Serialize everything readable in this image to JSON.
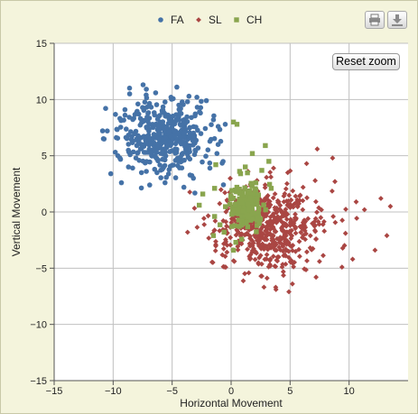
{
  "toolbar": {
    "reset_zoom_label": "Reset zoom",
    "print_icon": "printer-icon",
    "export_icon": "download-icon"
  },
  "chart_data": {
    "type": "scatter",
    "title": "",
    "xlabel": "Horizontal Movement",
    "ylabel": "Vertical Movement",
    "xlim": [
      -15,
      15
    ],
    "ylim": [
      -15,
      15
    ],
    "xticks": [
      -15,
      -10,
      -5,
      0,
      5,
      10
    ],
    "yticks": [
      -15,
      -10,
      -5,
      0,
      5,
      10,
      15
    ],
    "grid": true,
    "legend_position": "top-center",
    "series": [
      {
        "name": "FA",
        "marker": "circle",
        "color": "#4572a7",
        "center": [
          -5.6,
          6.6
        ],
        "spread": [
          1.85,
          1.55
        ],
        "count": 420,
        "points": [
          [
            -10.2,
            3.4
          ],
          [
            -10.5,
            7.2
          ],
          [
            -9.3,
            2.6
          ],
          [
            -9.6,
            5.0
          ],
          [
            -9.0,
            9.1
          ],
          [
            -8.6,
            10.5
          ],
          [
            -7.9,
            9.6
          ],
          [
            -7.2,
            10.4
          ],
          [
            -6.4,
            10.6
          ],
          [
            -5.1,
            10.2
          ],
          [
            -4.6,
            11.1
          ],
          [
            -3.7,
            9.8
          ],
          [
            -2.9,
            10.2
          ],
          [
            -2.6,
            8.8
          ],
          [
            -2.1,
            9.9
          ],
          [
            -1.5,
            8.2
          ],
          [
            -1.2,
            5.2
          ],
          [
            -1.8,
            3.9
          ],
          [
            -3.2,
            3.0
          ],
          [
            -4.0,
            2.2
          ],
          [
            -5.6,
            2.6
          ],
          [
            -6.9,
            2.4
          ],
          [
            -7.6,
            3.5
          ],
          [
            -8.7,
            4.0
          ],
          [
            -0.5,
            7.8
          ],
          [
            -1.1,
            6.0
          ]
        ]
      },
      {
        "name": "SL",
        "marker": "diamond",
        "color": "#aa4643",
        "center": [
          3.1,
          -1.4
        ],
        "spread": [
          2.35,
          1.85
        ],
        "count": 540,
        "points": [
          [
            7.3,
            5.6
          ],
          [
            6.4,
            4.3
          ],
          [
            8.6,
            4.8
          ],
          [
            10.6,
            0.9
          ],
          [
            11.3,
            0.2
          ],
          [
            12.7,
            1.2
          ],
          [
            13.5,
            0.5
          ],
          [
            13.2,
            -2.1
          ],
          [
            12.2,
            -3.4
          ],
          [
            10.3,
            -4.2
          ],
          [
            9.4,
            -4.9
          ],
          [
            7.2,
            -5.8
          ],
          [
            5.2,
            -6.4
          ],
          [
            4.9,
            -7.1
          ],
          [
            3.8,
            -6.9
          ],
          [
            2.6,
            -5.7
          ],
          [
            1.6,
            -4.1
          ],
          [
            0.7,
            -2.6
          ],
          [
            1.3,
            0.4
          ],
          [
            2.2,
            2.8
          ],
          [
            3.6,
            3.9
          ],
          [
            4.8,
            3.5
          ],
          [
            6.1,
            2.2
          ],
          [
            8.8,
            2.7
          ],
          [
            9.7,
            -1.9
          ]
        ]
      },
      {
        "name": "CH",
        "marker": "square",
        "color": "#89a54e",
        "center": [
          1.2,
          0.6
        ],
        "spread": [
          0.75,
          1.05
        ],
        "count": 160,
        "points": [
          [
            0.2,
            8.0
          ],
          [
            0.5,
            7.8
          ],
          [
            -1.3,
            4.2
          ],
          [
            -1.4,
            2.1
          ],
          [
            -2.7,
            0.6
          ],
          [
            -2.4,
            1.6
          ],
          [
            -1.5,
            -2.1
          ],
          [
            -1.4,
            -0.4
          ],
          [
            -0.6,
            -1.8
          ],
          [
            0.4,
            -2.7
          ],
          [
            0.2,
            -3.4
          ],
          [
            1.2,
            4.0
          ],
          [
            2.6,
            3.7
          ],
          [
            3.2,
            4.5
          ],
          [
            2.9,
            5.9
          ],
          [
            1.8,
            5.2
          ],
          [
            0.8,
            3.4
          ],
          [
            2.1,
            2.6
          ],
          [
            1.6,
            1.3
          ],
          [
            3.4,
            2.1
          ],
          [
            2.2,
            -1.2
          ]
        ]
      }
    ]
  }
}
